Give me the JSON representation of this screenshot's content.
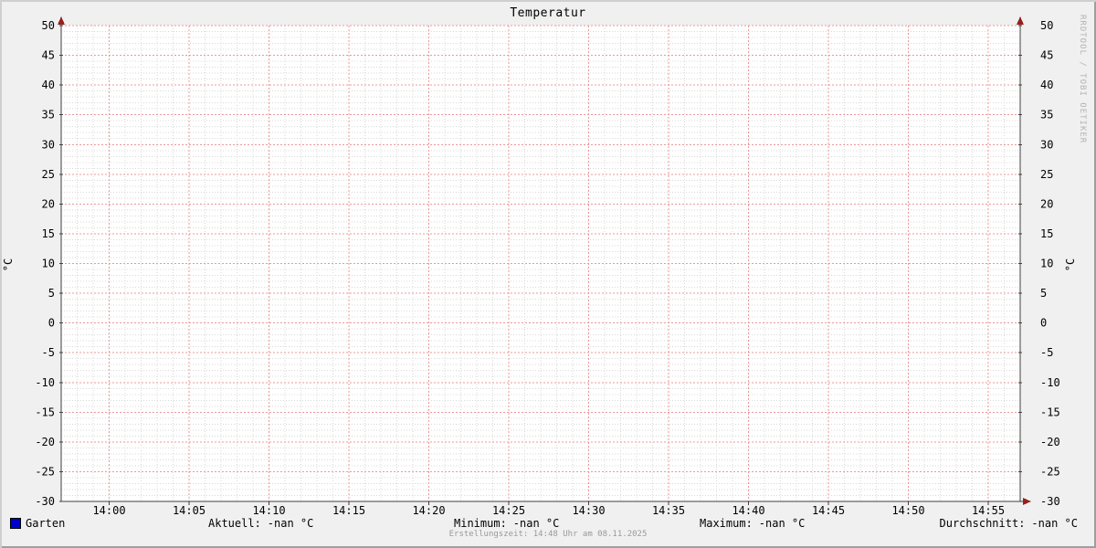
{
  "title": "Temperatur",
  "axis_label_left": "°C",
  "axis_label_right": "°C",
  "watermark": "RRDTOOL / TOBI OETIKER",
  "footer": "Erstellungszeit: 14:48 Uhr am 08.11.2025",
  "colors": {
    "background": "#f0f0f0",
    "canvas": "#ffffff",
    "grid_minor": "#d9d9d9",
    "grid_major": "#ec9898",
    "axis": "#404040",
    "arrow": "#99201d",
    "text": "#000000",
    "footer_text": "#999999",
    "watermark_text": "#b3b3b3",
    "border_light": "#cfcfcf",
    "border_dark": "#9e9e9e"
  },
  "chart_data": {
    "type": "line",
    "title": "Temperatur",
    "ylabel": "°C",
    "ylabel_right": "°C",
    "ylim": [
      -30,
      50
    ],
    "y_major_step": 5,
    "y_minor_step": 1,
    "y_tick_labels": [
      "50",
      "45",
      "40",
      "35",
      "30",
      "25",
      "20",
      "15",
      "10",
      "5",
      "0",
      "-5",
      "-10",
      "-15",
      "-20",
      "-25",
      "-30"
    ],
    "x_range": [
      "13:57",
      "14:57"
    ],
    "x_major_step_minutes": 5,
    "x_minor_step_minutes": 1,
    "x_tick_labels": [
      "14:00",
      "14:05",
      "14:10",
      "14:15",
      "14:20",
      "14:25",
      "14:30",
      "14:35",
      "14:40",
      "14:45",
      "14:50",
      "14:55"
    ],
    "grid": true,
    "legend_position": "bottom-left",
    "series": [
      {
        "name": "Garten",
        "color": "#0000cc",
        "values": []
      }
    ],
    "stats": [
      {
        "label": "Aktuell:",
        "value": "-nan °C"
      },
      {
        "label": "Minimum:",
        "value": "-nan °C"
      },
      {
        "label": "Maximum:",
        "value": "-nan °C"
      },
      {
        "label": "Durchschnitt:",
        "value": "-nan °C"
      }
    ]
  }
}
